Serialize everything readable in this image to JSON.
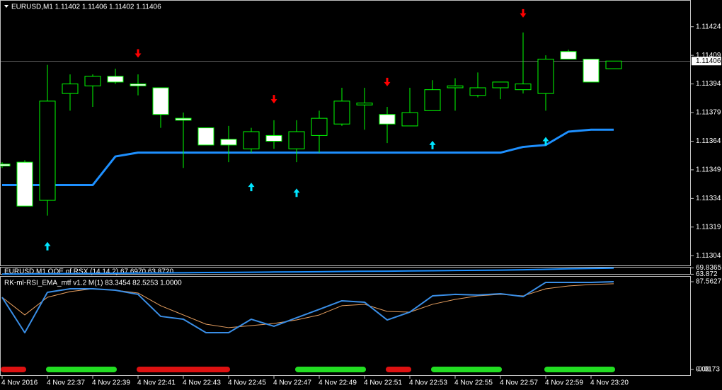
{
  "chart_data": [
    {
      "type": "candlestick",
      "title": "EURUSD,M1  1.11402 1.11406 1.11402 1.11406",
      "categories": [
        "4 Nov 2016",
        null,
        "4 Nov 22:37",
        null,
        "4 Nov 22:39",
        null,
        "4 Nov 22:41",
        null,
        "4 Nov 22:43",
        null,
        "4 Nov 22:45",
        null,
        "4 Nov 22:47",
        null,
        "4 Nov 22:49",
        null,
        "4 Nov 22:51",
        null,
        "4 Nov 22:53",
        null,
        "4 Nov 22:55",
        null,
        "4 Nov 22:57",
        null,
        "4 Nov 22:59",
        null,
        "4 Nov 23:20",
        null
      ],
      "open": [
        1.11352,
        1.11353,
        1.11333,
        1.11389,
        1.11393,
        1.11398,
        1.11394,
        1.11392,
        1.11376,
        1.11371,
        1.11365,
        1.1136,
        1.11367,
        1.1136,
        1.11367,
        1.11373,
        1.11383,
        1.11378,
        1.11372,
        1.1138,
        1.11392,
        1.11388,
        1.11392,
        1.11391,
        1.11389,
        1.11411,
        1.11407,
        1.11402
      ],
      "high": [
        1.11353,
        1.11354,
        1.11404,
        1.11399,
        1.11399,
        1.11402,
        1.11399,
        1.11392,
        1.11379,
        1.11371,
        1.11372,
        1.11371,
        1.11375,
        1.11375,
        1.1138,
        1.11392,
        1.11392,
        1.11382,
        1.11392,
        1.11396,
        1.11397,
        1.114,
        1.11395,
        1.11421,
        1.11409,
        1.11412,
        1.11407,
        1.11406
      ],
      "low": [
        1.1135,
        1.1133,
        1.11325,
        1.1138,
        1.11382,
        1.11394,
        1.11388,
        1.11371,
        1.1135,
        1.11362,
        1.11353,
        1.11358,
        1.1136,
        1.11353,
        1.11358,
        1.11372,
        1.1137,
        1.11363,
        1.11372,
        1.1138,
        1.1138,
        1.11387,
        1.11386,
        1.11389,
        1.1138,
        1.11407,
        1.11395,
        1.11402
      ],
      "close": [
        1.11351,
        1.1133,
        1.11385,
        1.11394,
        1.11398,
        1.11395,
        1.11393,
        1.11378,
        1.11375,
        1.11362,
        1.11362,
        1.11369,
        1.11364,
        1.11369,
        1.11376,
        1.11385,
        1.11384,
        1.11373,
        1.11379,
        1.11391,
        1.11393,
        1.11392,
        1.11395,
        1.11394,
        1.11407,
        1.11407,
        1.11395,
        1.11406
      ],
      "up_color": "#00ff00",
      "down_color": "#ffffff",
      "ma": {
        "color": "#1e90ff",
        "values": [
          1.11341,
          1.11341,
          1.11341,
          1.11341,
          1.11341,
          1.11356,
          1.11358,
          1.11358,
          1.11358,
          1.11358,
          1.11358,
          1.11358,
          1.11358,
          1.11358,
          1.11358,
          1.11358,
          1.11358,
          1.11358,
          1.11358,
          1.11358,
          1.11358,
          1.11358,
          1.11358,
          1.11361,
          1.11362,
          1.11369,
          1.1137,
          1.1137
        ]
      },
      "sell_arrows": {
        "color": "#ff0000",
        "values": [
          null,
          null,
          null,
          null,
          null,
          null,
          1.1141,
          null,
          null,
          null,
          null,
          null,
          1.11386,
          null,
          null,
          null,
          null,
          1.11395,
          null,
          null,
          null,
          null,
          null,
          1.11431,
          null,
          null,
          null,
          null
        ]
      },
      "buy_arrows": {
        "color": "#00e5ff",
        "values": [
          null,
          null,
          1.11309,
          null,
          null,
          null,
          null,
          null,
          null,
          null,
          null,
          1.1134,
          null,
          1.11337,
          null,
          null,
          null,
          null,
          null,
          1.11362,
          null,
          null,
          null,
          null,
          1.11364,
          null,
          null,
          null
        ]
      },
      "last_price": 1.11406,
      "ylim": [
        1.113,
        1.11438
      ],
      "yticks": [
        1.11424,
        1.11409,
        1.11394,
        1.11379,
        1.11364,
        1.11349,
        1.11334,
        1.11319,
        1.11304
      ]
    },
    {
      "type": "line",
      "title": "EURUSD,M1 OOE of RSX (14,14,2) 67.6970 63.8720",
      "series": [
        {
          "color": "#1e90ff",
          "values": [
            64.0,
            64.1,
            64.3,
            64.5,
            64.6,
            64.8,
            65.0,
            65.1,
            65.3,
            65.5,
            65.6,
            65.8,
            66.0,
            66.1,
            66.3,
            66.5,
            66.7,
            66.8,
            67.0,
            67.2,
            67.4,
            67.6,
            67.8,
            68.1,
            68.5,
            69.0,
            69.4,
            69.7
          ]
        }
      ],
      "ylim": [
        63.5,
        70.2
      ],
      "yticks": [
        69.8365,
        63.872
      ]
    },
    {
      "type": "line",
      "title": "RK-ml-RSI_EMA_mtf v1.2 M(1) 83.3454 82.5253 1.0000",
      "series": [
        {
          "color": "#3a8ee6",
          "values": [
            72.0,
            36.7,
            77.0,
            80.5,
            80.5,
            79.1,
            74.9,
            53.0,
            50.1,
            36.7,
            36.7,
            50.1,
            43.1,
            51.6,
            60.0,
            68.5,
            67.1,
            49.4,
            57.2,
            73.4,
            74.9,
            74.2,
            75.6,
            72.7,
            86.9,
            86.9,
            86.9,
            87.6
          ]
        },
        {
          "color": "#e8a060",
          "values": [
            72.0,
            54.4,
            72.0,
            77.7,
            80.5,
            79.1,
            76.3,
            63.6,
            54.4,
            45.2,
            41.7,
            43.8,
            45.9,
            49.4,
            54.4,
            63.6,
            65.0,
            57.9,
            57.2,
            65.0,
            69.9,
            73.4,
            74.9,
            73.4,
            80.5,
            83.3,
            84.7,
            85.5
          ]
        }
      ],
      "signal": {
        "up_color": "#22dd22",
        "down_color": "#dd1111",
        "values": [
          -1,
          -1,
          1,
          1,
          1,
          1,
          -1,
          -1,
          -1,
          -1,
          -1,
          0,
          0,
          1,
          1,
          1,
          1,
          -1,
          -1,
          1,
          1,
          1,
          1,
          0,
          1,
          1,
          1,
          1
        ]
      },
      "ylim": [
        -0.0173,
        87.5627
      ],
      "yticks": [
        87.5627,
        {
          "value": 0,
          "label": "0.00"
        },
        -0.0173
      ]
    }
  ]
}
